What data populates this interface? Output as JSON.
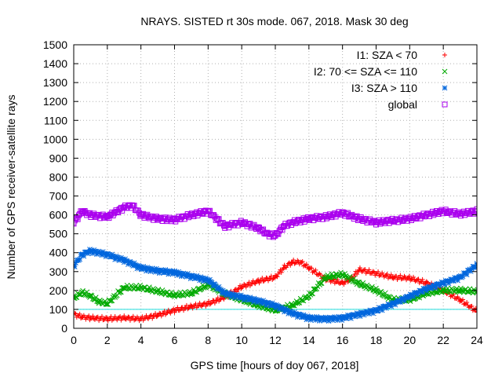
{
  "chart_data": {
    "type": "scatter",
    "title": "NRAYS. SISTED rt 30s mode. 067, 2018. Mask 30 deg",
    "xlabel": "GPS time [hours of doy 067, 2018]",
    "ylabel": "Number of GPS receiver-satellite rays",
    "xlim": [
      0,
      24
    ],
    "ylim": [
      0,
      1500
    ],
    "x_ticks": [
      0,
      2,
      4,
      6,
      8,
      10,
      12,
      14,
      16,
      18,
      20,
      22,
      24
    ],
    "y_ticks": [
      0,
      100,
      200,
      300,
      400,
      500,
      600,
      700,
      800,
      900,
      1000,
      1100,
      1200,
      1300,
      1400,
      1500
    ],
    "grid": true,
    "legend_position": "top-right",
    "reference_line": {
      "y": 100,
      "color": "#22dddd"
    },
    "series": [
      {
        "name": "I1: SZA < 70",
        "marker": "+",
        "color": "#ff0000",
        "x": [
          0,
          0.5,
          1,
          2,
          3,
          4,
          5,
          6,
          7,
          8,
          9,
          10,
          11,
          12,
          12.5,
          13,
          13.5,
          14,
          15,
          16,
          16.5,
          17,
          18,
          19,
          20,
          21,
          22,
          23,
          24
        ],
        "values": [
          75,
          60,
          55,
          50,
          55,
          50,
          70,
          95,
          115,
          130,
          165,
          220,
          250,
          270,
          320,
          350,
          350,
          320,
          260,
          240,
          260,
          310,
          290,
          270,
          265,
          240,
          200,
          150,
          90
        ]
      },
      {
        "name": "I2: 70 <= SZA <= 110",
        "marker": "x",
        "color": "#00aa00",
        "x": [
          0,
          0.5,
          1,
          1.5,
          2,
          3,
          4,
          5,
          6,
          7,
          8,
          9,
          10,
          11,
          12,
          13,
          14,
          15,
          16,
          17,
          18,
          19,
          20,
          21,
          22,
          23,
          24
        ],
        "values": [
          160,
          190,
          170,
          140,
          130,
          215,
          215,
          195,
          175,
          185,
          230,
          180,
          150,
          120,
          95,
          120,
          170,
          270,
          285,
          235,
          200,
          150,
          150,
          185,
          200,
          200,
          195
        ]
      },
      {
        "name": "I3: SZA > 110",
        "marker": "*",
        "color": "#0066dd",
        "x": [
          0,
          0.5,
          1,
          2,
          3,
          4,
          5,
          6,
          7,
          8,
          9,
          10,
          11,
          12,
          13,
          14,
          15,
          16,
          17,
          18,
          19,
          20,
          21,
          22,
          23,
          24
        ],
        "values": [
          330,
          390,
          410,
          390,
          360,
          320,
          305,
          295,
          275,
          255,
          185,
          165,
          145,
          120,
          80,
          55,
          50,
          55,
          75,
          95,
          130,
          170,
          210,
          240,
          270,
          335
        ]
      },
      {
        "name": "global",
        "marker": "square",
        "color": "#aa00ee",
        "x": [
          0,
          0.5,
          1,
          2,
          3,
          3.5,
          4,
          5,
          6,
          7,
          8,
          9,
          10,
          11,
          11.5,
          12,
          12.5,
          13,
          14,
          15,
          16,
          17,
          18,
          19,
          20,
          21,
          22,
          23,
          24
        ],
        "values": [
          560,
          620,
          600,
          590,
          640,
          650,
          600,
          580,
          575,
          600,
          620,
          540,
          560,
          530,
          500,
          490,
          540,
          560,
          580,
          590,
          610,
          580,
          560,
          570,
          580,
          600,
          620,
          605,
          620
        ]
      }
    ]
  }
}
